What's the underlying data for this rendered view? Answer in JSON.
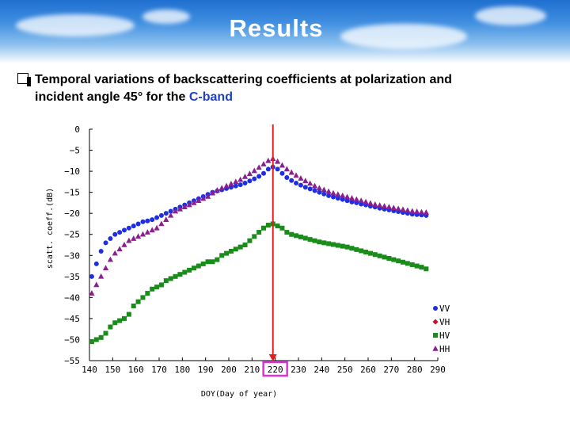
{
  "header": {
    "title": "Results"
  },
  "subtitle": {
    "line1": "Temporal variations of backscattering coefficients at polarization and",
    "line2_prefix": "incident angle 45° for the ",
    "band": "C-band"
  },
  "colors": {
    "VV": "#1e2ee0",
    "VH": "#c8102e",
    "HV": "#1a8c1a",
    "HH": "#8a1f8f",
    "marker_line": "#e02020",
    "highlight_box": "#dd33dd"
  },
  "chart_data": {
    "type": "scatter",
    "xlabel": "DOY(Day of year)",
    "ylabel": "scatt. coeff.(dB)",
    "xlim": [
      140,
      290
    ],
    "ylim": [
      -55,
      0
    ],
    "x_ticks": [
      140,
      150,
      160,
      170,
      180,
      190,
      200,
      210,
      220,
      230,
      240,
      250,
      260,
      270,
      280,
      290
    ],
    "y_ticks": [
      0,
      -5,
      -10,
      -15,
      -20,
      -25,
      -30,
      -35,
      -40,
      -45,
      -50,
      -55
    ],
    "legend_position": "bottom-right",
    "legend": [
      "VV",
      "VH",
      "HV",
      "HH"
    ],
    "vertical_marker_x": 219,
    "highlighted_tick": "220",
    "series": [
      {
        "name": "VV",
        "marker": "circle",
        "points": [
          [
            141,
            -35
          ],
          [
            143,
            -32
          ],
          [
            145,
            -29
          ],
          [
            147,
            -27
          ],
          [
            149,
            -26
          ],
          [
            151,
            -25
          ],
          [
            153,
            -24.5
          ],
          [
            155,
            -24
          ],
          [
            157,
            -23.5
          ],
          [
            159,
            -23
          ],
          [
            161,
            -22.5
          ],
          [
            163,
            -22
          ],
          [
            165,
            -21.8
          ],
          [
            167,
            -21.5
          ],
          [
            169,
            -21
          ],
          [
            171,
            -20.5
          ],
          [
            173,
            -20
          ],
          [
            175,
            -19.5
          ],
          [
            177,
            -19
          ],
          [
            179,
            -18.5
          ],
          [
            181,
            -18
          ],
          [
            183,
            -17.5
          ],
          [
            185,
            -17
          ],
          [
            187,
            -16.5
          ],
          [
            189,
            -16
          ],
          [
            191,
            -15.5
          ],
          [
            193,
            -15
          ],
          [
            195,
            -14.7
          ],
          [
            197,
            -14.4
          ],
          [
            199,
            -14.1
          ],
          [
            201,
            -13.8
          ],
          [
            203,
            -13.5
          ],
          [
            205,
            -13.2
          ],
          [
            207,
            -12.8
          ],
          [
            209,
            -12.3
          ],
          [
            211,
            -11.8
          ],
          [
            213,
            -11.2
          ],
          [
            215,
            -10.5
          ],
          [
            217,
            -9.5
          ],
          [
            219,
            -9.0
          ],
          [
            221,
            -9.5
          ],
          [
            223,
            -10.5
          ],
          [
            225,
            -11.5
          ],
          [
            227,
            -12.2
          ],
          [
            229,
            -12.8
          ],
          [
            231,
            -13.3
          ],
          [
            233,
            -13.8
          ],
          [
            235,
            -14.2
          ],
          [
            237,
            -14.6
          ],
          [
            239,
            -15
          ],
          [
            241,
            -15.4
          ],
          [
            243,
            -15.8
          ],
          [
            245,
            -16.1
          ],
          [
            247,
            -16.4
          ],
          [
            249,
            -16.7
          ],
          [
            251,
            -17
          ],
          [
            253,
            -17.3
          ],
          [
            255,
            -17.5
          ],
          [
            257,
            -17.8
          ],
          [
            259,
            -18
          ],
          [
            261,
            -18.3
          ],
          [
            263,
            -18.5
          ],
          [
            265,
            -18.8
          ],
          [
            267,
            -19
          ],
          [
            269,
            -19.2
          ],
          [
            271,
            -19.4
          ],
          [
            273,
            -19.6
          ],
          [
            275,
            -19.8
          ],
          [
            277,
            -20
          ],
          [
            279,
            -20.2
          ],
          [
            281,
            -20.3
          ],
          [
            283,
            -20.4
          ],
          [
            285,
            -20.5
          ]
        ]
      },
      {
        "name": "VH",
        "marker": "diamond",
        "points": []
      },
      {
        "name": "HV",
        "marker": "square",
        "points": [
          [
            141,
            -50.5
          ],
          [
            143,
            -50
          ],
          [
            145,
            -49.5
          ],
          [
            147,
            -48.5
          ],
          [
            149,
            -47
          ],
          [
            151,
            -46
          ],
          [
            153,
            -45.5
          ],
          [
            155,
            -45
          ],
          [
            157,
            -44
          ],
          [
            159,
            -42
          ],
          [
            161,
            -41
          ],
          [
            163,
            -40
          ],
          [
            165,
            -39
          ],
          [
            167,
            -38
          ],
          [
            169,
            -37.5
          ],
          [
            171,
            -37
          ],
          [
            173,
            -36
          ],
          [
            175,
            -35.5
          ],
          [
            177,
            -35
          ],
          [
            179,
            -34.5
          ],
          [
            181,
            -34
          ],
          [
            183,
            -33.5
          ],
          [
            185,
            -33
          ],
          [
            187,
            -32.5
          ],
          [
            189,
            -32
          ],
          [
            191,
            -31.5
          ],
          [
            193,
            -31.5
          ],
          [
            195,
            -31
          ],
          [
            197,
            -30
          ],
          [
            199,
            -29.5
          ],
          [
            201,
            -29
          ],
          [
            203,
            -28.5
          ],
          [
            205,
            -28
          ],
          [
            207,
            -27.5
          ],
          [
            209,
            -26.5
          ],
          [
            211,
            -25.5
          ],
          [
            213,
            -24.5
          ],
          [
            215,
            -23.5
          ],
          [
            217,
            -22.8
          ],
          [
            219,
            -22.5
          ],
          [
            221,
            -23
          ],
          [
            223,
            -23.5
          ],
          [
            225,
            -24.5
          ],
          [
            227,
            -25
          ],
          [
            229,
            -25.3
          ],
          [
            231,
            -25.6
          ],
          [
            233,
            -25.9
          ],
          [
            235,
            -26.2
          ],
          [
            237,
            -26.5
          ],
          [
            239,
            -26.8
          ],
          [
            241,
            -27
          ],
          [
            243,
            -27.2
          ],
          [
            245,
            -27.4
          ],
          [
            247,
            -27.6
          ],
          [
            249,
            -27.8
          ],
          [
            251,
            -28
          ],
          [
            253,
            -28.3
          ],
          [
            255,
            -28.6
          ],
          [
            257,
            -28.9
          ],
          [
            259,
            -29.2
          ],
          [
            261,
            -29.5
          ],
          [
            263,
            -29.8
          ],
          [
            265,
            -30.1
          ],
          [
            267,
            -30.4
          ],
          [
            269,
            -30.7
          ],
          [
            271,
            -31
          ],
          [
            273,
            -31.3
          ],
          [
            275,
            -31.6
          ],
          [
            277,
            -31.9
          ],
          [
            279,
            -32.2
          ],
          [
            281,
            -32.5
          ],
          [
            283,
            -32.8
          ],
          [
            285,
            -33.2
          ]
        ]
      },
      {
        "name": "HH",
        "marker": "triangle",
        "points": [
          [
            141,
            -39
          ],
          [
            143,
            -37
          ],
          [
            145,
            -35
          ],
          [
            147,
            -33
          ],
          [
            149,
            -31
          ],
          [
            151,
            -29.5
          ],
          [
            153,
            -28.5
          ],
          [
            155,
            -27.5
          ],
          [
            157,
            -26.5
          ],
          [
            159,
            -26
          ],
          [
            161,
            -25.5
          ],
          [
            163,
            -25
          ],
          [
            165,
            -24.5
          ],
          [
            167,
            -24
          ],
          [
            169,
            -23.5
          ],
          [
            171,
            -22.5
          ],
          [
            173,
            -21.5
          ],
          [
            175,
            -20.5
          ],
          [
            177,
            -19.5
          ],
          [
            179,
            -19
          ],
          [
            181,
            -18.5
          ],
          [
            183,
            -18
          ],
          [
            185,
            -17.5
          ],
          [
            187,
            -17
          ],
          [
            189,
            -16.5
          ],
          [
            191,
            -16
          ],
          [
            193,
            -15.2
          ],
          [
            195,
            -14.5
          ],
          [
            197,
            -14
          ],
          [
            199,
            -13.5
          ],
          [
            201,
            -13
          ],
          [
            203,
            -12.5
          ],
          [
            205,
            -12
          ],
          [
            207,
            -11.3
          ],
          [
            209,
            -10.6
          ],
          [
            211,
            -9.9
          ],
          [
            213,
            -9.1
          ],
          [
            215,
            -8.3
          ],
          [
            217,
            -7.5
          ],
          [
            219,
            -7
          ],
          [
            221,
            -7.7
          ],
          [
            223,
            -8.6
          ],
          [
            225,
            -9.5
          ],
          [
            227,
            -10.3
          ],
          [
            229,
            -11
          ],
          [
            231,
            -11.7
          ],
          [
            233,
            -12.3
          ],
          [
            235,
            -12.9
          ],
          [
            237,
            -13.5
          ],
          [
            239,
            -14
          ],
          [
            241,
            -14.4
          ],
          [
            243,
            -14.8
          ],
          [
            245,
            -15.2
          ],
          [
            247,
            -15.5
          ],
          [
            249,
            -15.8
          ],
          [
            251,
            -16.1
          ],
          [
            253,
            -16.4
          ],
          [
            255,
            -16.7
          ],
          [
            257,
            -17
          ],
          [
            259,
            -17.3
          ],
          [
            261,
            -17.6
          ],
          [
            263,
            -17.9
          ],
          [
            265,
            -18.1
          ],
          [
            267,
            -18.3
          ],
          [
            269,
            -18.5
          ],
          [
            271,
            -18.7
          ],
          [
            273,
            -18.9
          ],
          [
            275,
            -19.1
          ],
          [
            277,
            -19.3
          ],
          [
            279,
            -19.5
          ],
          [
            281,
            -19.6
          ],
          [
            283,
            -19.7
          ],
          [
            285,
            -19.8
          ]
        ]
      }
    ]
  }
}
